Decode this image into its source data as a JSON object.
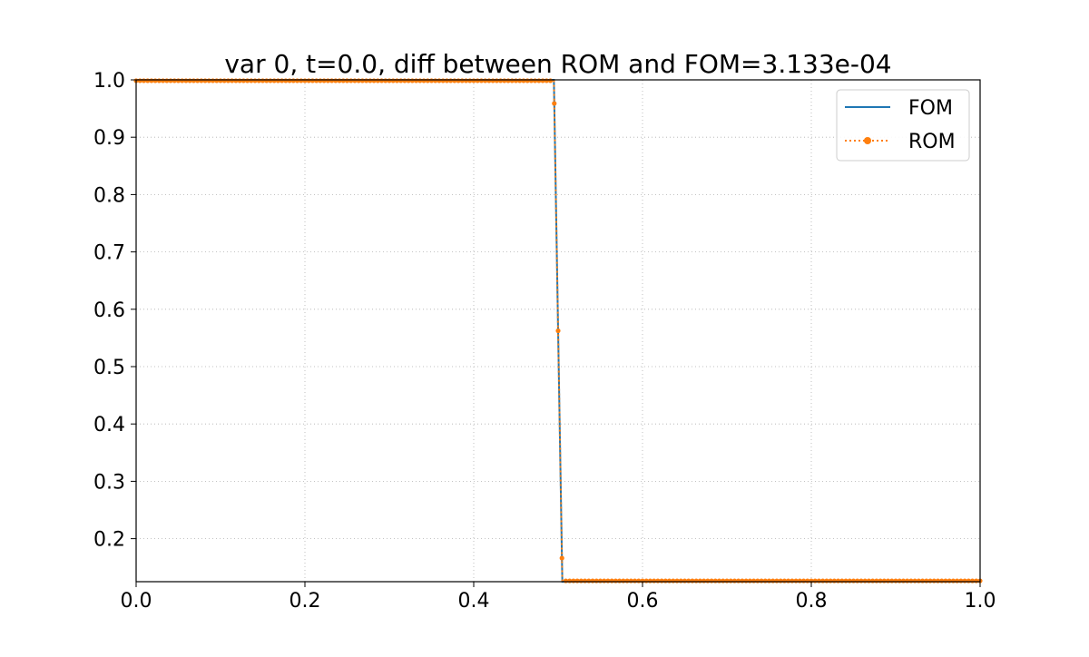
{
  "chart_data": {
    "type": "line",
    "title": "var 0, t=0.0,  diff between ROM and FOM=3.133e-04",
    "xlabel": "",
    "ylabel": "",
    "xlim": [
      0.0,
      1.0
    ],
    "ylim": [
      0.125,
      1.0
    ],
    "x_ticks": [
      "0.0",
      "0.2",
      "0.4",
      "0.6",
      "0.8",
      "1.0"
    ],
    "y_ticks": [
      "0.2",
      "0.3",
      "0.4",
      "0.5",
      "0.6",
      "0.7",
      "0.8",
      "0.9",
      "1.0"
    ],
    "grid": true,
    "legend_position": "top-right",
    "series": [
      {
        "name": "FOM",
        "color": "#1f77b4",
        "style": "solid",
        "x": [
          0.0,
          0.495,
          0.5,
          0.505,
          1.0
        ],
        "y": [
          1.0,
          1.0,
          0.5625,
          0.125,
          0.125
        ]
      },
      {
        "name": "ROM",
        "color": "#ff7f0e",
        "style": "dotted-markers",
        "x": [
          0.0,
          0.495,
          0.5,
          0.505,
          1.0
        ],
        "y": [
          0.9985,
          0.9985,
          0.5625,
          0.1265,
          0.1265
        ]
      }
    ]
  }
}
